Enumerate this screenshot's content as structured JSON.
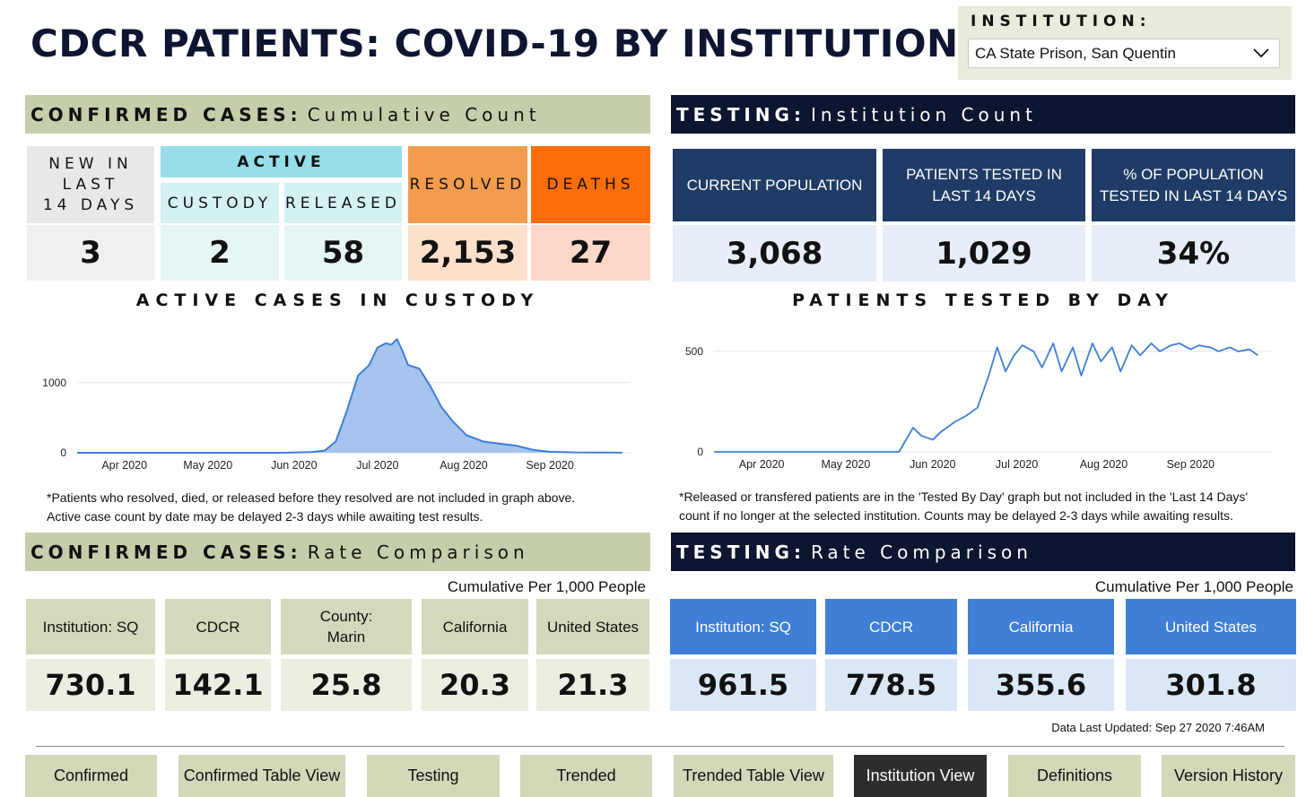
{
  "header": {
    "title": "CDCR PATIENTS: COVID-19 BY INSTITUTION",
    "institution_label": "INSTITUTION:",
    "institution_selected": "CA State Prison, San Quentin"
  },
  "confirmed": {
    "banner_bold": "CONFIRMED CASES:",
    "banner_rest": "Cumulative Count",
    "new_label_1": "NEW IN",
    "new_label_2": "LAST",
    "new_label_3": "14 DAYS",
    "new_value": "3",
    "active_label": "ACTIVE",
    "custody_label": "CUSTODY",
    "custody_value": "2",
    "released_label": "RELEASED",
    "released_value": "58",
    "resolved_label": "RESOLVED",
    "resolved_value": "2,153",
    "deaths_label": "DEATHS",
    "deaths_value": "27"
  },
  "testing": {
    "banner_bold": "TESTING:",
    "banner_rest": "Institution Count",
    "pop_label": "CURRENT POPULATION",
    "pop_value": "3,068",
    "tested_label_1": "PATIENTS TESTED IN",
    "tested_label_2": "LAST 14 DAYS",
    "tested_value": "1,029",
    "pct_label_1": "% OF POPULATION",
    "pct_label_2": "TESTED IN LAST 14 DAYS",
    "pct_value": "34%"
  },
  "active_chart": {
    "title": "ACTIVE CASES IN CUSTODY",
    "note_1": "*Patients who resolved, died, or released before they resolved are not included in graph above.",
    "note_2": "Active case count by date may be delayed 2-3 days while awaiting test results."
  },
  "tested_chart": {
    "title": "PATIENTS TESTED BY DAY",
    "note_1": "*Released or transfered patients are in the 'Tested By Day' graph but not included in the 'Last 14 Days'",
    "note_2": "count if no longer at the selected institution.  Counts may be delayed 2-3 days while awaiting results."
  },
  "chart_data": [
    {
      "type": "area",
      "title": "ACTIVE CASES IN CUSTODY",
      "x": [
        "2020-03-15",
        "2020-05-01",
        "2020-05-28",
        "2020-06-07",
        "2020-06-12",
        "2020-06-16",
        "2020-06-20",
        "2020-06-24",
        "2020-06-28",
        "2020-07-01",
        "2020-07-04",
        "2020-07-06",
        "2020-07-08",
        "2020-07-10",
        "2020-07-12",
        "2020-07-16",
        "2020-07-20",
        "2020-07-24",
        "2020-07-28",
        "2020-08-02",
        "2020-08-08",
        "2020-08-14",
        "2020-08-20",
        "2020-08-26",
        "2020-09-01",
        "2020-09-10",
        "2020-09-27"
      ],
      "y": [
        0,
        0,
        0,
        10,
        30,
        160,
        600,
        1100,
        1250,
        1500,
        1560,
        1540,
        1620,
        1450,
        1250,
        1200,
        950,
        650,
        450,
        250,
        160,
        130,
        100,
        40,
        15,
        5,
        2
      ],
      "x_ticks": [
        "Apr 2020",
        "May 2020",
        "Jun 2020",
        "Jul 2020",
        "Aug 2020",
        "Sep 2020"
      ],
      "y_ticks": [
        0,
        1000
      ],
      "ylim": [
        0,
        1700
      ],
      "color": "#3e7fd6",
      "fill": "#a6c4ee"
    },
    {
      "type": "line",
      "title": "PATIENTS TESTED BY DAY",
      "x": [
        "2020-03-15",
        "2020-04-15",
        "2020-05-20",
        "2020-05-25",
        "2020-05-28",
        "2020-06-01",
        "2020-06-04",
        "2020-06-09",
        "2020-06-13",
        "2020-06-17",
        "2020-06-21",
        "2020-06-24",
        "2020-06-27",
        "2020-06-30",
        "2020-07-03",
        "2020-07-07",
        "2020-07-10",
        "2020-07-14",
        "2020-07-17",
        "2020-07-21",
        "2020-07-24",
        "2020-07-28",
        "2020-07-31",
        "2020-08-04",
        "2020-08-07",
        "2020-08-11",
        "2020-08-14",
        "2020-08-18",
        "2020-08-21",
        "2020-08-25",
        "2020-08-28",
        "2020-09-01",
        "2020-09-04",
        "2020-09-08",
        "2020-09-11",
        "2020-09-15",
        "2020-09-18",
        "2020-09-22",
        "2020-09-25"
      ],
      "y": [
        0,
        0,
        0,
        120,
        80,
        60,
        100,
        150,
        180,
        220,
        380,
        520,
        400,
        480,
        530,
        500,
        420,
        540,
        400,
        520,
        380,
        540,
        450,
        520,
        400,
        530,
        480,
        540,
        500,
        530,
        540,
        510,
        530,
        520,
        500,
        520,
        500,
        510,
        480
      ],
      "x_ticks": [
        "Apr 2020",
        "May 2020",
        "Jun 2020",
        "Jul 2020",
        "Aug 2020",
        "Sep 2020"
      ],
      "y_ticks": [
        0,
        500
      ],
      "ylim": [
        0,
        580
      ],
      "color": "#3e7fd6"
    }
  ],
  "rate_confirmed": {
    "banner_bold": "CONFIRMED CASES:",
    "banner_rest": "Rate Comparison",
    "subtitle": "Cumulative Per 1,000 People",
    "items": [
      {
        "label": "Institution: SQ",
        "value": "730.1"
      },
      {
        "label": "CDCR",
        "value": "142.1"
      },
      {
        "label": "County: Marin",
        "value": "25.8"
      },
      {
        "label": "California",
        "value": "20.3"
      },
      {
        "label": "United States",
        "value": "21.3"
      }
    ]
  },
  "rate_testing": {
    "banner_bold": "TESTING:",
    "banner_rest": "Rate Comparison",
    "subtitle": "Cumulative Per 1,000 People",
    "items": [
      {
        "label": "Institution: SQ",
        "value": "961.5"
      },
      {
        "label": "CDCR",
        "value": "778.5"
      },
      {
        "label": "California",
        "value": "355.6"
      },
      {
        "label": "United States",
        "value": "301.8"
      }
    ]
  },
  "updated": "Data Last Updated: Sep 27 2020 7:46AM",
  "nav": [
    "Confirmed",
    "Confirmed Table View",
    "Testing",
    "Trended",
    "Trended Table View",
    "Institution View",
    "Definitions",
    "Version History"
  ],
  "colors": {
    "navy": "#0d1530",
    "green_banner": "#c5ceaa",
    "active_cyan": "#96dfea",
    "resolved_orange": "#f39c4e",
    "deaths_orange": "#fb6e07",
    "test_blue": "#3f7fd6",
    "nav_active": "#2d2d2d"
  }
}
